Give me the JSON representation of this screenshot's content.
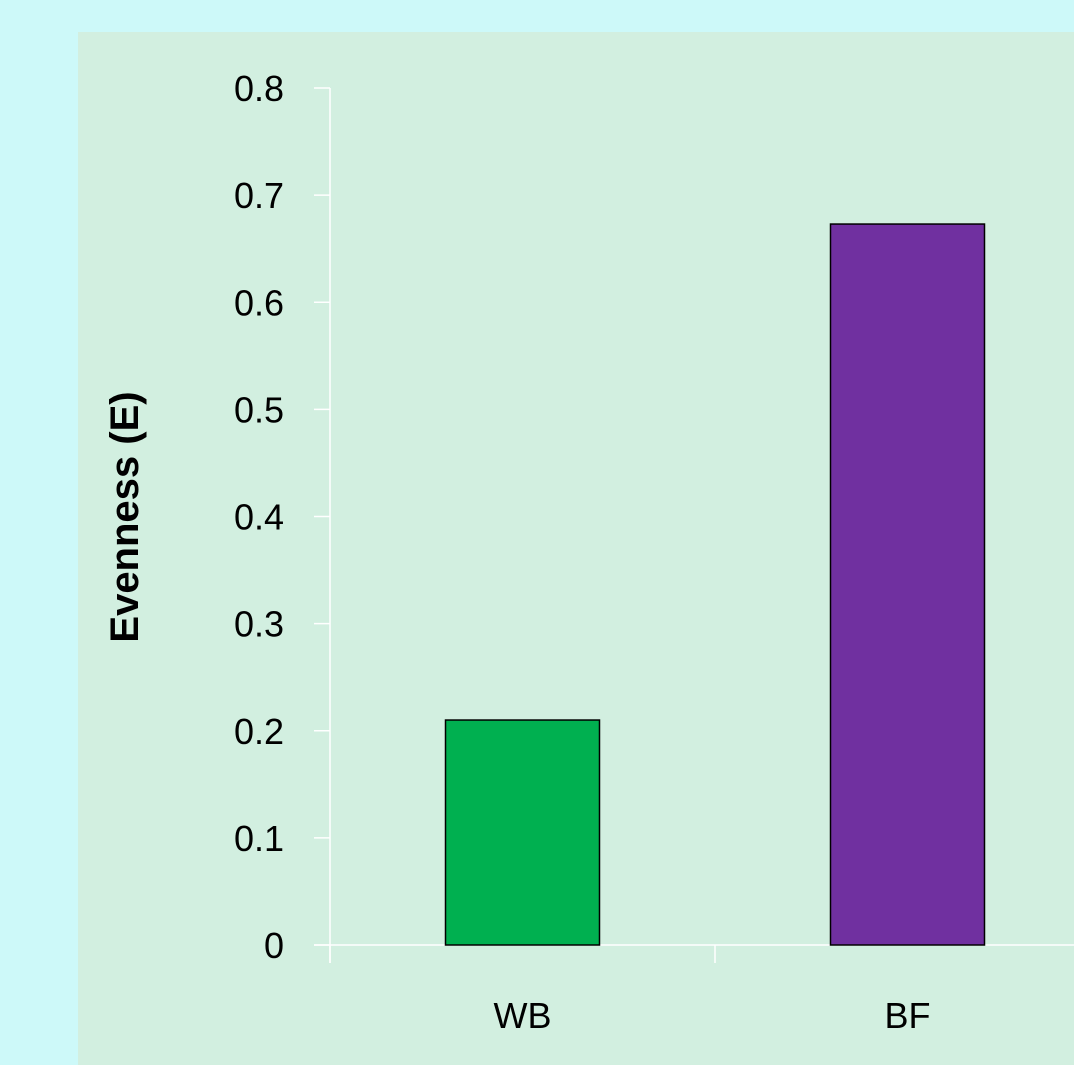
{
  "chart_data": {
    "type": "bar",
    "title": "",
    "xlabel": "",
    "ylabel": "Evenness (E)",
    "categories": [
      "WB",
      "BF"
    ],
    "values": [
      0.21,
      0.673
    ],
    "bar_colors": [
      "#00b050",
      "#7030a0"
    ],
    "ylim": [
      0,
      0.8
    ],
    "yticks": [
      "0",
      "0.1",
      "0.2",
      "0.3",
      "0.4",
      "0.5",
      "0.6",
      "0.7",
      "0.8"
    ],
    "grid": false,
    "legend": "none"
  },
  "colors": {
    "page_background": "#cdf9f9",
    "plot_background": "#d2efe0",
    "axis_line": "#ffffff",
    "bar_outline": "#000000"
  }
}
